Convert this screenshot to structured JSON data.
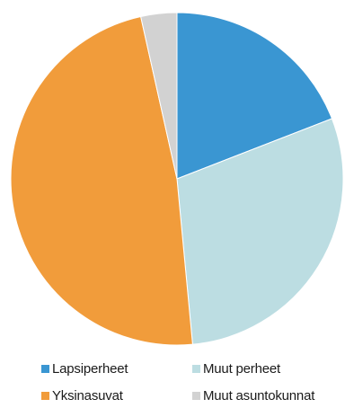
{
  "chart_data": {
    "type": "pie",
    "start_angle_deg": 0,
    "direction": "clockwise",
    "slices": [
      {
        "label": "Lapsiperheet",
        "value": 19.1,
        "color": "#3a96d2"
      },
      {
        "label": "Muut perheet",
        "value": 29.4,
        "color": "#bcdde2"
      },
      {
        "label": "Yksinasuvat",
        "value": 48.0,
        "color": "#f19c3b"
      },
      {
        "label": "Muut asuntokunnat",
        "value": 3.5,
        "color": "#d2d2d2"
      }
    ],
    "legend": {
      "placement": "bottom",
      "items": [
        "Lapsiperheet",
        "Muut perheet",
        "Yksinasuvat",
        "Muut asuntokunnat"
      ]
    }
  }
}
